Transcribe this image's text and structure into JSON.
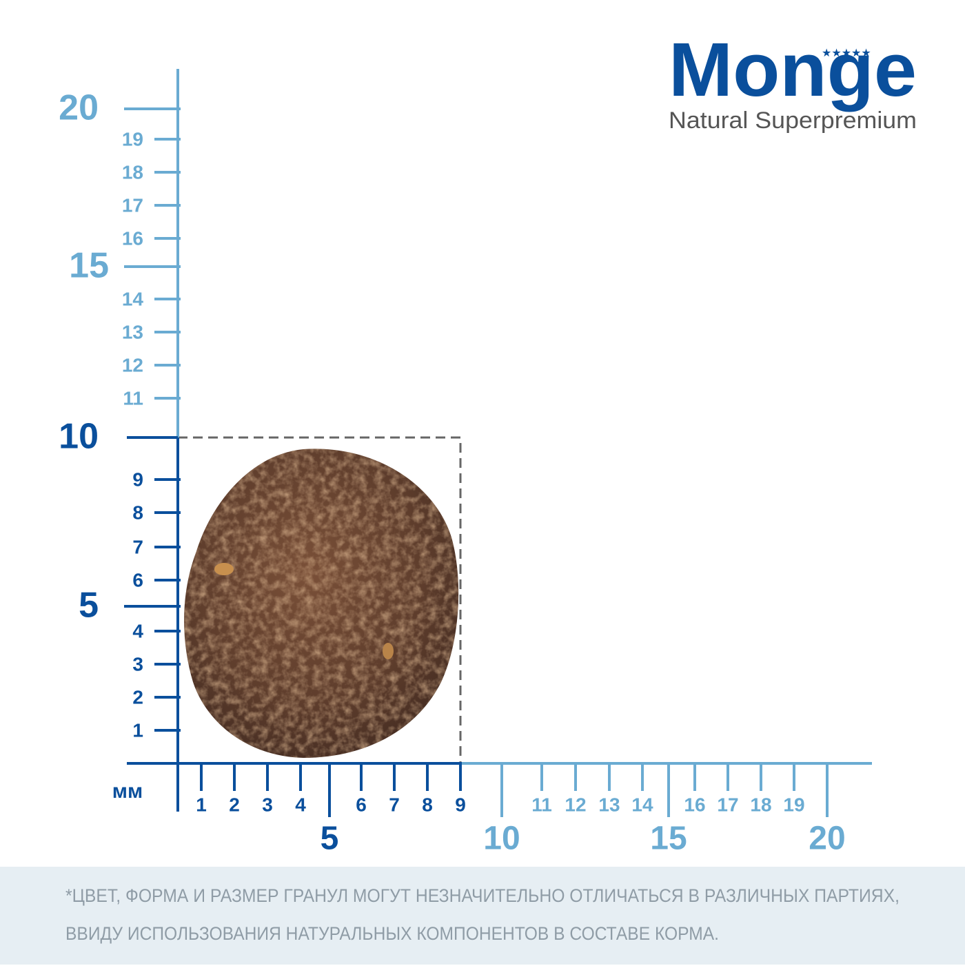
{
  "logo": {
    "brand": "Monge",
    "tagline": "Natural Superpremium"
  },
  "ruler": {
    "unit": "мм",
    "vertical_scale": [
      1,
      2,
      3,
      4,
      5,
      6,
      7,
      8,
      9,
      10,
      11,
      12,
      13,
      14,
      15,
      16,
      17,
      18,
      19,
      20
    ],
    "horizontal_scale": [
      1,
      2,
      3,
      4,
      5,
      6,
      7,
      8,
      9,
      10,
      11,
      12,
      13,
      14,
      15,
      16,
      17,
      18,
      19,
      20
    ]
  },
  "footnote": [
    "*ЦВЕТ, ФОРМА И РАЗМЕР ГРАНУЛ МОГУТ НЕЗНАЧИТЕЛЬНО ОТЛИЧАТЬСЯ В РАЗЛИЧНЫХ ПАРТИЯХ,",
    "ВВИДУ ИСПОЛЬЗОВАНИЯ НАТУРАЛЬНЫХ КОМПОНЕНТОВ В СОСТАВЕ КОРМА."
  ]
}
